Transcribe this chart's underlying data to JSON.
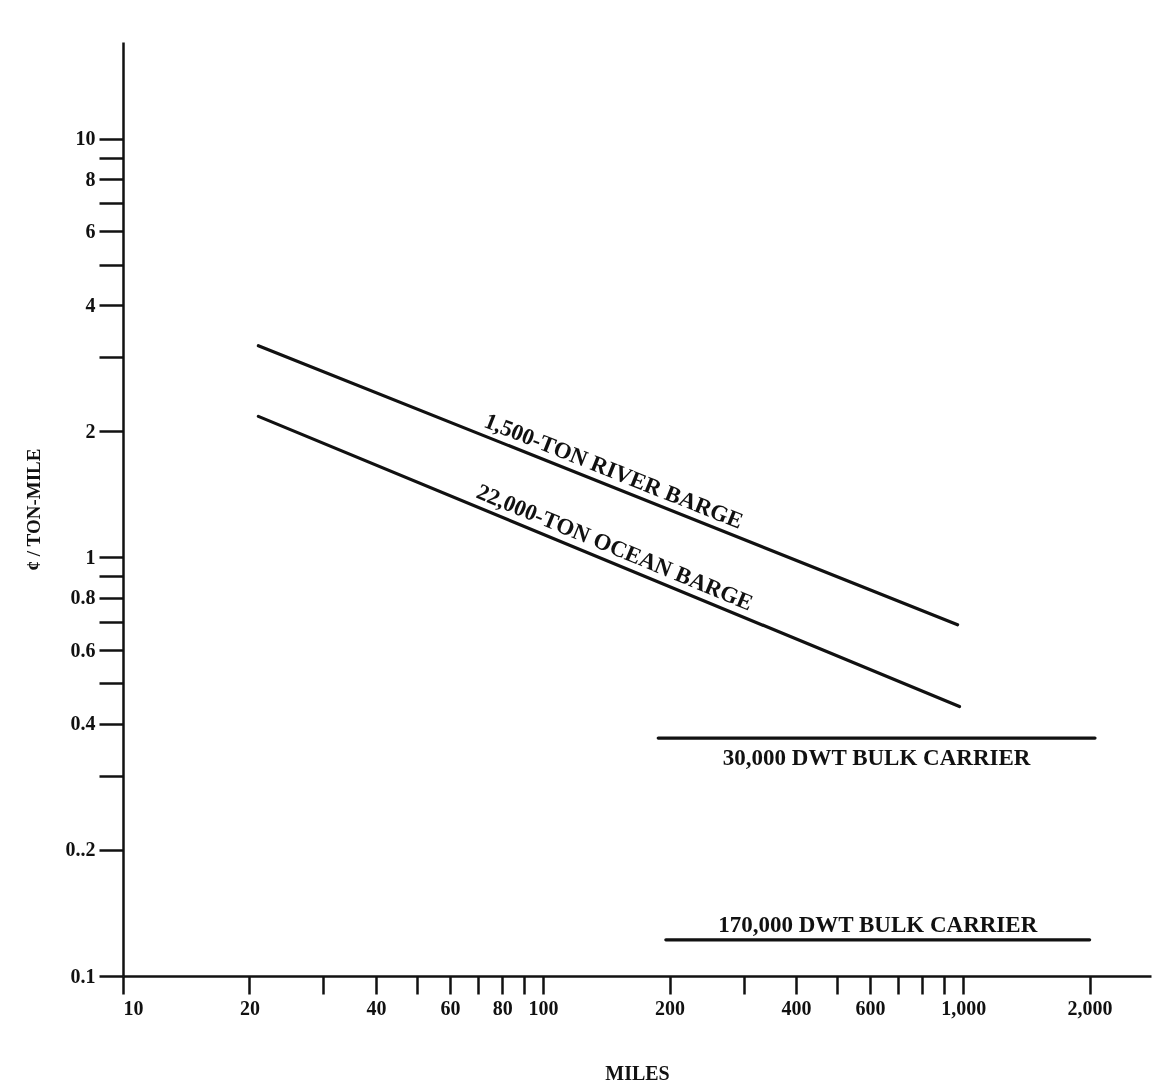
{
  "chart_data": {
    "type": "line",
    "xlabel": "MILES",
    "ylabel": "¢ / TON-MILE",
    "log": "xy",
    "grid": false,
    "legend": false,
    "marker": "none",
    "line_style": "solid",
    "xlim": [
      10,
      2800
    ],
    "ylim": [
      0.1,
      17
    ],
    "xticks": [
      10,
      20,
      40,
      60,
      80,
      100,
      200,
      400,
      600,
      {
        "value": 1000,
        "label": "1,000"
      },
      {
        "value": 2000,
        "label": "2,000"
      }
    ],
    "yticks": [
      0.1,
      {
        "value": 0.2,
        "label": "0..2"
      },
      0.4,
      0.6,
      0.8,
      1,
      2,
      4,
      6,
      8,
      10
    ],
    "series": [
      {
        "name": "1,500-TON RIVER BARGE",
        "color": "#111111",
        "x": [
          21,
          970
        ],
        "values": [
          3.2,
          0.69
        ]
      },
      {
        "name": "22,000-TON OCEAN BARGE",
        "color": "#111111",
        "x": [
          21,
          980
        ],
        "values": [
          2.17,
          0.44
        ]
      },
      {
        "name": "30,000 DWT BULK CARRIER",
        "color": "#111111",
        "x": [
          188,
          2060
        ],
        "values": [
          0.37,
          0.37
        ]
      },
      {
        "name": "170,000 DWT BULK CARRIER",
        "color": "#111111",
        "x": [
          196,
          2000
        ],
        "values": [
          0.122,
          0.122
        ]
      }
    ]
  }
}
